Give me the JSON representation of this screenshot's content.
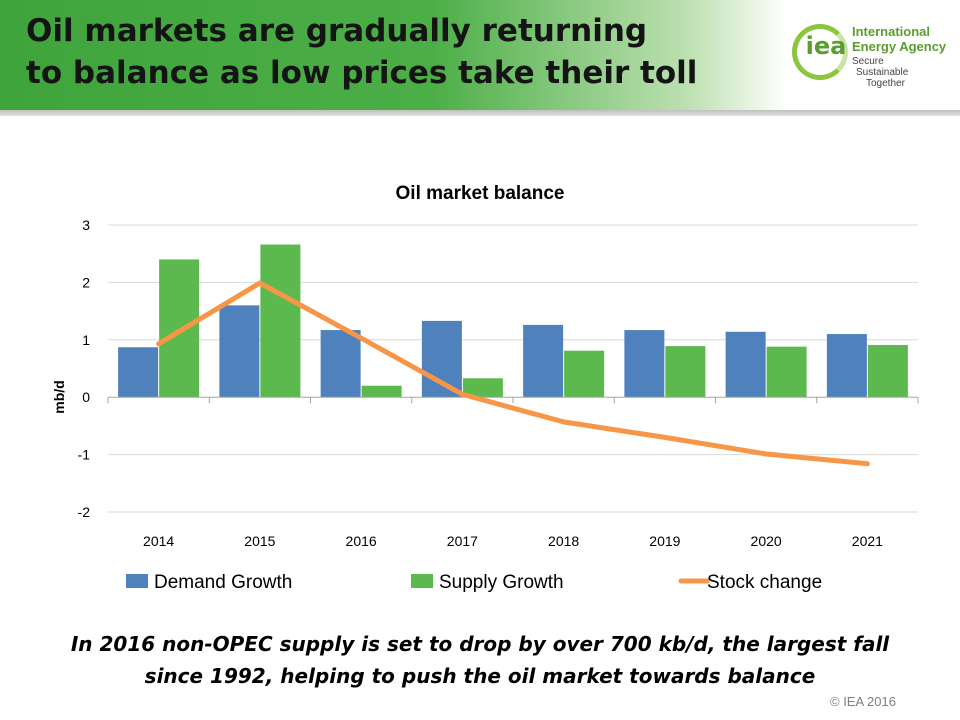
{
  "slide": {
    "title_lines": [
      "Oil markets are gradually returning",
      "to balance as low prices take their toll"
    ],
    "caption": "In 2016 non-OPEC supply is set to drop by over 700 kb/d, the largest fall since 1992, helping to push the oil market towards balance",
    "copyright": "© IEA 2016"
  },
  "logo": {
    "mark": "iea",
    "name": "International Energy Agency",
    "tagline": [
      "Secure",
      "Sustainable",
      "Together"
    ]
  },
  "colors": {
    "banner_green": "#4cae47",
    "demand": "#4f81bd",
    "supply": "#5bb94d",
    "stock": "#f79646"
  },
  "chart_data": {
    "type": "bar",
    "title": "Oil market balance",
    "ylabel": "mb/d",
    "xlabel": "",
    "ylim": [
      -2,
      3
    ],
    "yticks": [
      3,
      2,
      1,
      0,
      -1,
      -2
    ],
    "ytick_labels": [
      "3",
      "2",
      "1",
      "0",
      "-1",
      "-2"
    ],
    "grid": true,
    "legend_position": "bottom",
    "categories": [
      "2014",
      "2015",
      "2016",
      "2017",
      "2018",
      "2019",
      "2020",
      "2021"
    ],
    "series": [
      {
        "name": "Demand Growth",
        "type": "bar",
        "color": "#4f81bd",
        "values": [
          0.87,
          1.6,
          1.17,
          1.33,
          1.26,
          1.17,
          1.14,
          1.1
        ]
      },
      {
        "name": "Supply Growth",
        "type": "bar",
        "color": "#5bb94d",
        "values": [
          2.4,
          2.66,
          0.2,
          0.33,
          0.81,
          0.89,
          0.88,
          0.91
        ]
      },
      {
        "name": "Stock change",
        "type": "line",
        "color": "#f79646",
        "values": [
          0.93,
          1.99,
          1.03,
          0.05,
          -0.43,
          -0.7,
          -0.99,
          -1.16
        ]
      }
    ]
  }
}
